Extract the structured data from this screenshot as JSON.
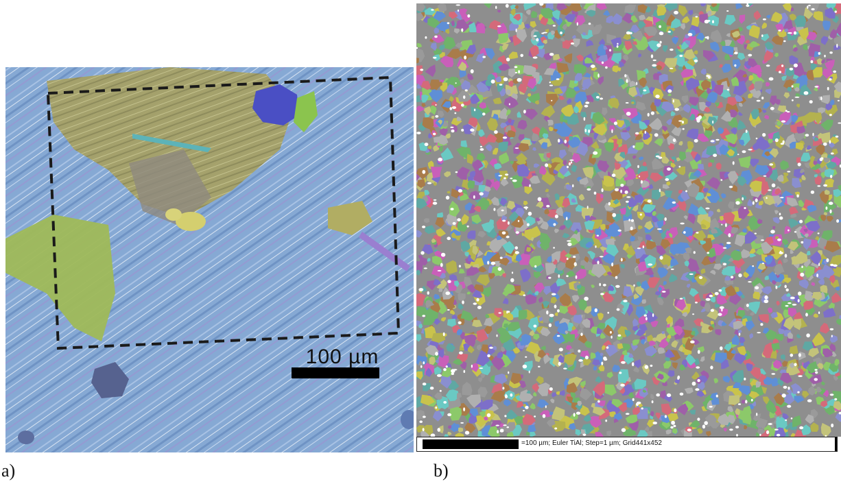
{
  "panel_a": {
    "label": "a)",
    "scale_bar": "100 µm",
    "colors": {
      "matrix": "#7fa3cf",
      "grain_olive": "#a8a466",
      "grain_green": "#9fb958",
      "grain_blue": "#4a4fc4",
      "outline": "#1a1a1a"
    }
  },
  "panel_b": {
    "label": "b)",
    "info_text": "=100 µm; Euler TiAl; Step=1 µm; Grid441x452",
    "colors": {
      "palette": [
        "#8a8fd0",
        "#b4b24f",
        "#6fb36a",
        "#c95fb9",
        "#9a9a9a",
        "#5fa8a3",
        "#c9c34c",
        "#7d6fc9",
        "#d46a7a",
        "#8cc96a",
        "#a97c4a",
        "#5f8fd6",
        "#b0b0b0",
        "#c3c37a",
        "#6ac9c3",
        "#9f5fa8"
      ]
    }
  }
}
